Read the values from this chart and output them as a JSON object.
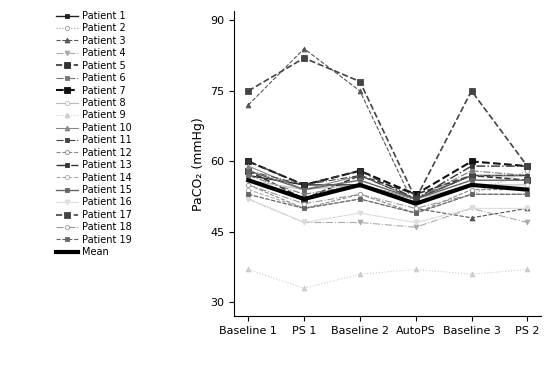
{
  "x_labels": [
    "Baseline 1",
    "PS 1",
    "Baseline 2",
    "AutoPS",
    "Baseline 3",
    "PS 2"
  ],
  "ylim": [
    27,
    92
  ],
  "yticks": [
    30,
    45,
    60,
    75,
    90
  ],
  "ylabel": "PaCO₂ (mmHg)",
  "patient_data": {
    "Patient 1": [
      57,
      55,
      55,
      52,
      57,
      57
    ],
    "Patient 2": [
      53,
      50,
      52,
      49,
      53,
      58
    ],
    "Patient 3": [
      72,
      84,
      75,
      50,
      48,
      50
    ],
    "Patient 4": [
      52,
      47,
      47,
      46,
      50,
      47
    ],
    "Patient 5": [
      58,
      52,
      57,
      53,
      57,
      56
    ],
    "Patient 6": [
      57,
      53,
      55,
      52,
      58,
      57
    ],
    "Patient 7": [
      60,
      55,
      58,
      53,
      60,
      59
    ],
    "Patient 8": [
      56,
      54,
      55,
      52,
      55,
      55
    ],
    "Patient 9": [
      37,
      33,
      36,
      37,
      36,
      37
    ],
    "Patient 10": [
      59,
      54,
      57,
      52,
      57,
      57
    ],
    "Patient 11": [
      58,
      55,
      57,
      52,
      57,
      57
    ],
    "Patient 12": [
      55,
      50,
      53,
      49,
      54,
      54
    ],
    "Patient 13": [
      60,
      55,
      58,
      52,
      59,
      59
    ],
    "Patient 14": [
      54,
      50,
      52,
      49,
      53,
      53
    ],
    "Patient 15": [
      58,
      54,
      56,
      52,
      56,
      56
    ],
    "Patient 16": [
      52,
      47,
      49,
      47,
      50,
      50
    ],
    "Patient 17": [
      75,
      82,
      77,
      52,
      75,
      59
    ],
    "Patient 18": [
      55,
      51,
      53,
      50,
      53,
      53
    ],
    "Patient 19": [
      53,
      50,
      52,
      49,
      53,
      53
    ],
    "Mean": [
      56,
      52,
      55,
      51,
      55,
      54
    ]
  },
  "styles": {
    "Patient 1": {
      "color": "#222222",
      "ls": "-",
      "marker": "s",
      "lw": 1.0,
      "ms": 3.5,
      "mfc": "#222222"
    },
    "Patient 2": {
      "color": "#999999",
      "ls": ":",
      "marker": "o",
      "lw": 0.8,
      "ms": 3.0,
      "mfc": "white"
    },
    "Patient 3": {
      "color": "#555555",
      "ls": "--",
      "marker": "^",
      "lw": 0.8,
      "ms": 3.5,
      "mfc": "#555555"
    },
    "Patient 4": {
      "color": "#aaaaaa",
      "ls": "-.",
      "marker": "v",
      "lw": 0.8,
      "ms": 3.5,
      "mfc": "#aaaaaa"
    },
    "Patient 5": {
      "color": "#333333",
      "ls": "--",
      "marker": "s",
      "lw": 1.2,
      "ms": 4.0,
      "mfc": "#333333"
    },
    "Patient 6": {
      "color": "#777777",
      "ls": "-.",
      "marker": "s",
      "lw": 0.8,
      "ms": 3.5,
      "mfc": "#777777"
    },
    "Patient 7": {
      "color": "#111111",
      "ls": "--",
      "marker": "s",
      "lw": 1.5,
      "ms": 4.5,
      "mfc": "#111111"
    },
    "Patient 8": {
      "color": "#bbbbbb",
      "ls": "-",
      "marker": "o",
      "lw": 0.8,
      "ms": 3.0,
      "mfc": "white"
    },
    "Patient 9": {
      "color": "#cccccc",
      "ls": ":",
      "marker": "^",
      "lw": 0.8,
      "ms": 3.5,
      "mfc": "#cccccc"
    },
    "Patient 10": {
      "color": "#888888",
      "ls": "-",
      "marker": "^",
      "lw": 0.8,
      "ms": 3.5,
      "mfc": "#888888"
    },
    "Patient 11": {
      "color": "#444444",
      "ls": "-.",
      "marker": "s",
      "lw": 0.8,
      "ms": 3.5,
      "mfc": "#444444"
    },
    "Patient 12": {
      "color": "#888888",
      "ls": "--",
      "marker": "o",
      "lw": 0.8,
      "ms": 3.0,
      "mfc": "white"
    },
    "Patient 13": {
      "color": "#333333",
      "ls": "-.",
      "marker": "s",
      "lw": 1.0,
      "ms": 3.5,
      "mfc": "#333333"
    },
    "Patient 14": {
      "color": "#aaaaaa",
      "ls": "--",
      "marker": "o",
      "lw": 0.8,
      "ms": 3.0,
      "mfc": "white"
    },
    "Patient 15": {
      "color": "#666666",
      "ls": "-",
      "marker": "s",
      "lw": 1.0,
      "ms": 3.5,
      "mfc": "#666666"
    },
    "Patient 16": {
      "color": "#dddddd",
      "ls": "-",
      "marker": "v",
      "lw": 0.8,
      "ms": 3.5,
      "mfc": "#dddddd"
    },
    "Patient 17": {
      "color": "#444444",
      "ls": "--",
      "marker": "s",
      "lw": 1.2,
      "ms": 4.0,
      "mfc": "#444444"
    },
    "Patient 18": {
      "color": "#999999",
      "ls": "-.",
      "marker": "o",
      "lw": 0.8,
      "ms": 3.0,
      "mfc": "white"
    },
    "Patient 19": {
      "color": "#666666",
      "ls": "--",
      "marker": "s",
      "lw": 0.8,
      "ms": 3.5,
      "mfc": "#666666"
    },
    "Mean": {
      "color": "#000000",
      "ls": "-",
      "marker": "None",
      "lw": 3.0,
      "ms": 0,
      "mfc": "#000000"
    }
  },
  "background_color": "#ffffff",
  "legend_fontsize": 7,
  "tick_fontsize": 8,
  "ylabel_fontsize": 9
}
